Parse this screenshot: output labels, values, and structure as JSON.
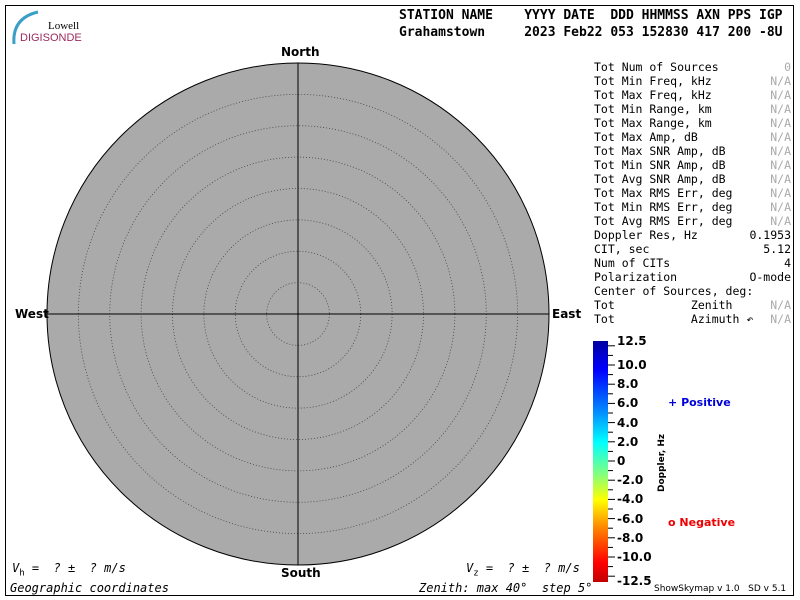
{
  "logo": {
    "line1": "Lowell",
    "line2": "DIGISONDE"
  },
  "header": {
    "labels": "STATION NAME    YYYY DATE  DDD HHMMSS AXN PPS IGP",
    "values": "Grahamstown     2023 Feb22 053 152830 417 200 -8U"
  },
  "directions": {
    "north": "North",
    "south": "South",
    "east": "East",
    "west": "West"
  },
  "stats": [
    {
      "label": "Tot Num of Sources",
      "value": "0",
      "na": true
    },
    {
      "label": "Tot Min Freq, kHz",
      "value": "N/A",
      "na": true
    },
    {
      "label": "Tot Max Freq, kHz",
      "value": "N/A",
      "na": true
    },
    {
      "label": "Tot Min Range, km",
      "value": "N/A",
      "na": true
    },
    {
      "label": "Tot Max Range, km",
      "value": "N/A",
      "na": true
    },
    {
      "label": "Tot Max Amp, dB",
      "value": "N/A",
      "na": true
    },
    {
      "label": "Tot Max SNR Amp, dB",
      "value": "N/A",
      "na": true
    },
    {
      "label": "Tot Min SNR Amp, dB",
      "value": "N/A",
      "na": true
    },
    {
      "label": "Tot Avg SNR Amp, dB",
      "value": "N/A",
      "na": true
    },
    {
      "label": "Tot Max RMS Err, deg",
      "value": "N/A",
      "na": true
    },
    {
      "label": "Tot Min RMS Err, deg",
      "value": "N/A",
      "na": true
    },
    {
      "label": "Tot Avg RMS Err, deg",
      "value": "N/A",
      "na": true
    },
    {
      "label": "Doppler Res, Hz",
      "value": "0.1953",
      "na": false
    },
    {
      "label": "CIT, sec",
      "value": "5.12",
      "na": false
    },
    {
      "label": "Num of CITs",
      "value": "4",
      "na": false
    },
    {
      "label": "Polarization",
      "value": "O-mode",
      "na": false
    },
    {
      "label": "Center of Sources, deg:",
      "value": "",
      "na": false
    },
    {
      "label": "Tot           Zenith",
      "value": "N/A",
      "na": true
    },
    {
      "label": "Tot           Azimuth ↶",
      "value": "N/A",
      "na": true
    }
  ],
  "colorbar": {
    "title": "Doppler, Hz",
    "min": -12.5,
    "max": 12.5,
    "ticks": [
      "12.5",
      "10.0",
      "8.0",
      "6.0",
      "4.0",
      "2.0",
      "0",
      "-2.0",
      "-4.0",
      "-6.0",
      "-8.0",
      "-10.0",
      "-12.5"
    ],
    "tick_values": [
      12.5,
      10,
      8,
      6,
      4,
      2,
      0,
      -2,
      -4,
      -6,
      -8,
      -10,
      -12.5
    ]
  },
  "legend": {
    "positive_symbol": "+",
    "positive": "Positive",
    "negative_symbol": "o",
    "negative": "Negative",
    "positive_color": "#0000dd",
    "negative_color": "#ee0000"
  },
  "footer": {
    "vh": "V",
    "vh_sub": "h",
    "vh_rest": " =  ? ±  ? m/s",
    "vz": "V",
    "vz_sub": "z",
    "vz_rest": " =  ? ±  ? m/s",
    "coords": "Geographic coordinates",
    "zenith": "Zenith: max 40°  step 5°",
    "version": "ShowSkymap v 1.0   SD v 5.1"
  },
  "skymap": {
    "zenith_max_deg": 40,
    "zenith_step_deg": 5,
    "background": "#aaaaaa"
  }
}
